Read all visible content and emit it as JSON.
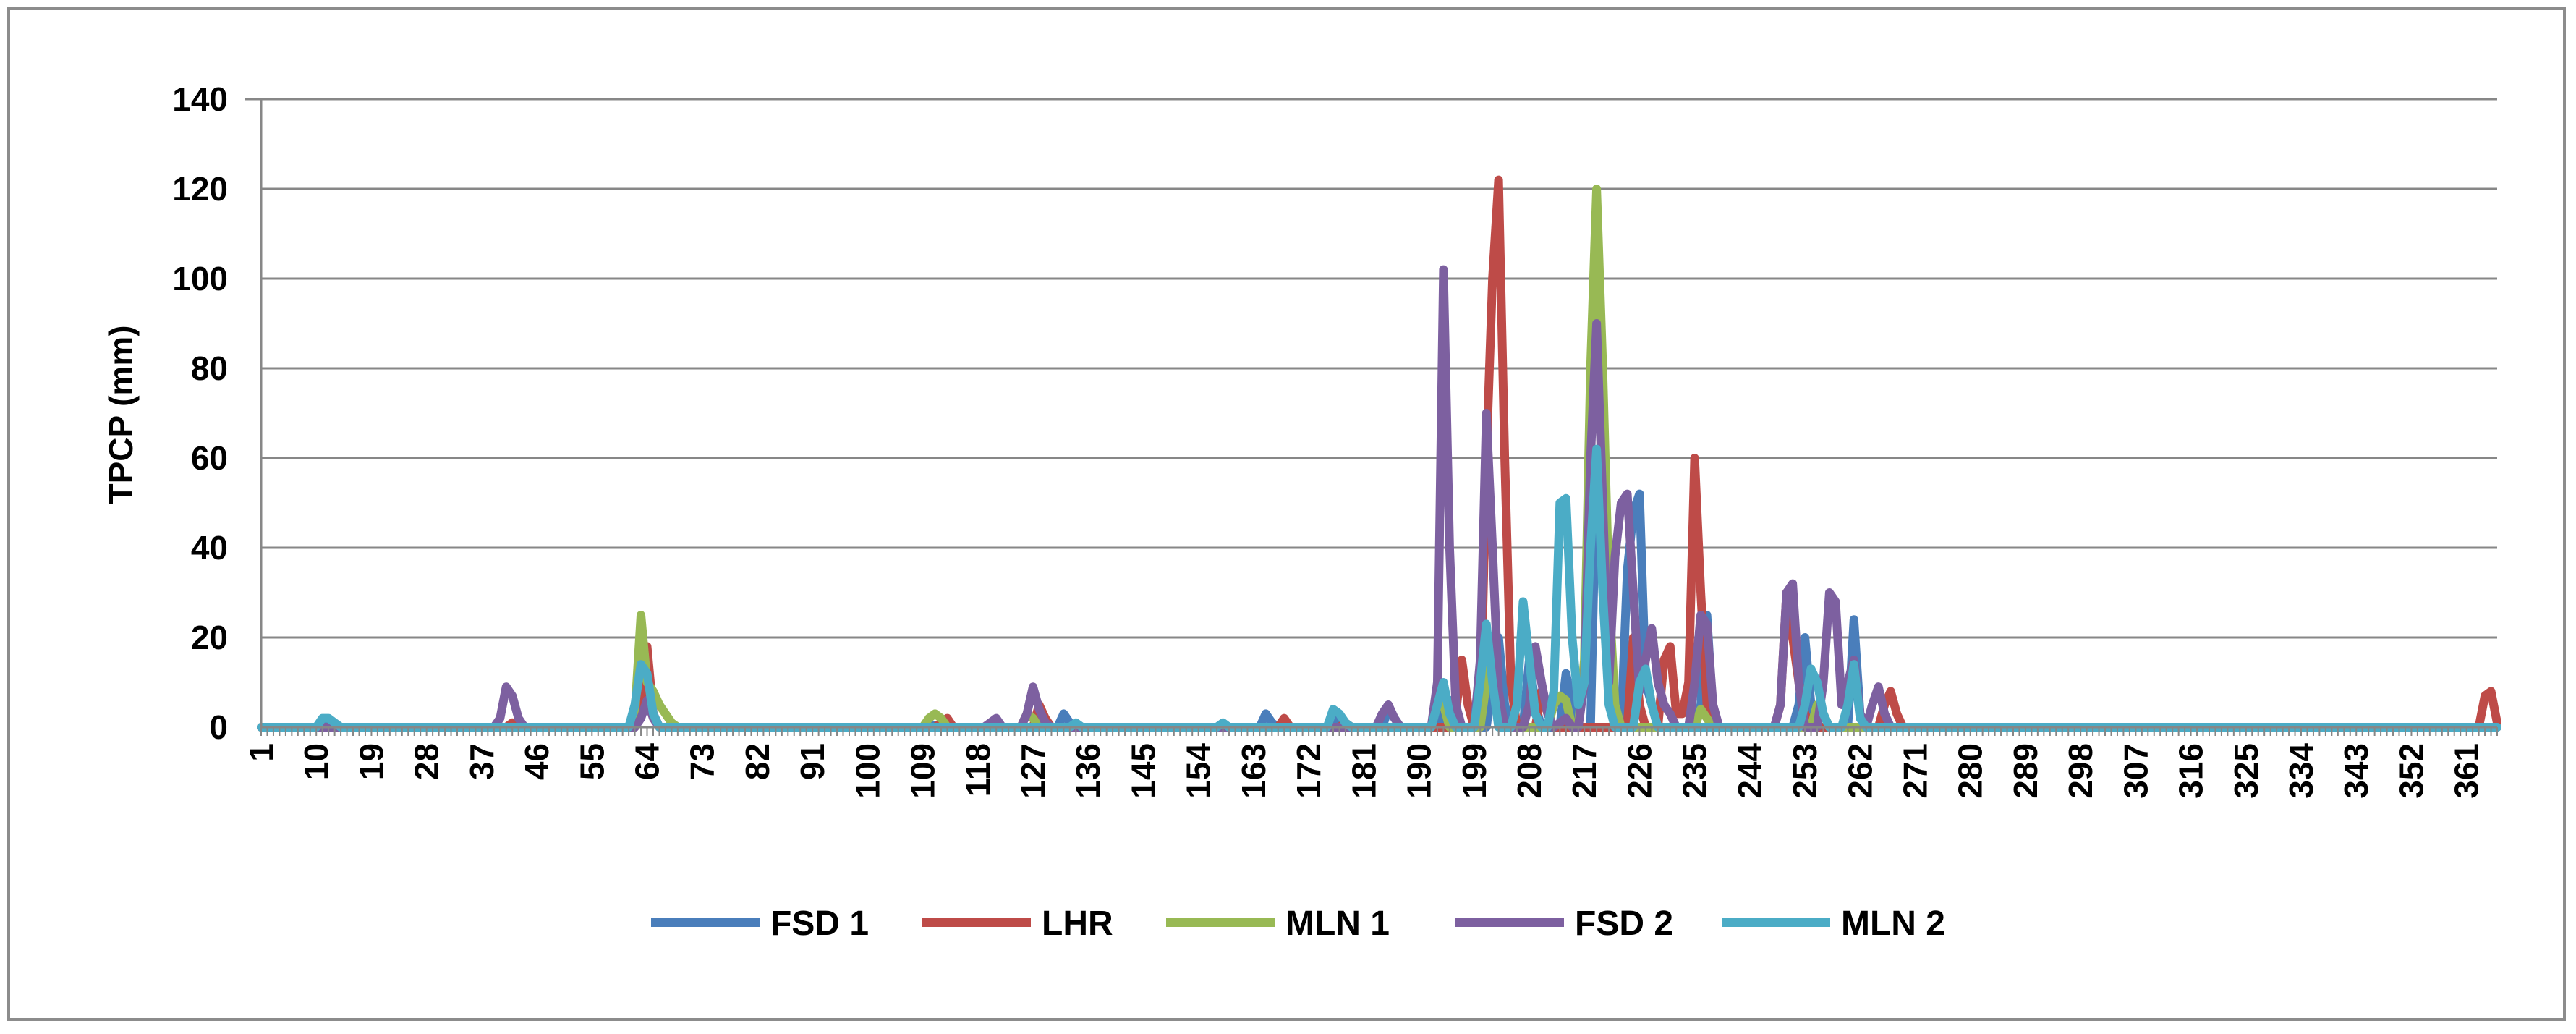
{
  "chart_data": {
    "type": "line",
    "title": "",
    "xlabel": "",
    "ylabel": "TPCP (mm)",
    "xlim": [
      1,
      366
    ],
    "ylim": [
      0,
      140
    ],
    "yticks": [
      0,
      20,
      40,
      60,
      80,
      100,
      120,
      140
    ],
    "xticks": [
      1,
      10,
      19,
      28,
      37,
      46,
      55,
      64,
      73,
      82,
      91,
      100,
      109,
      118,
      127,
      136,
      145,
      154,
      163,
      172,
      181,
      190,
      199,
      208,
      217,
      226,
      235,
      244,
      253,
      262,
      271,
      280,
      289,
      298,
      307,
      316,
      325,
      334,
      343,
      352,
      361
    ],
    "grid": "horizontal",
    "legend_position": "bottom",
    "series": [
      {
        "name": "FSD 1",
        "color": "#4a7ebb",
        "points": [
          [
            11,
            1
          ],
          [
            12,
            1
          ],
          [
            63,
            3
          ],
          [
            64,
            10
          ],
          [
            65,
            3
          ],
          [
            110,
            1
          ],
          [
            128,
            1
          ],
          [
            132,
            3
          ],
          [
            133,
            1
          ],
          [
            165,
            3
          ],
          [
            166,
            1
          ],
          [
            176,
            2
          ],
          [
            185,
            4
          ],
          [
            186,
            2
          ],
          [
            194,
            3
          ],
          [
            195,
            6
          ],
          [
            202,
            10
          ],
          [
            203,
            20
          ],
          [
            204,
            5
          ],
          [
            208,
            15
          ],
          [
            209,
            5
          ],
          [
            214,
            12
          ],
          [
            215,
            5
          ],
          [
            219,
            60
          ],
          [
            220,
            62
          ],
          [
            221,
            20
          ],
          [
            224,
            35
          ],
          [
            225,
            48
          ],
          [
            226,
            52
          ],
          [
            227,
            10
          ],
          [
            228,
            5
          ],
          [
            236,
            5
          ],
          [
            237,
            25
          ],
          [
            238,
            3
          ],
          [
            252,
            5
          ],
          [
            253,
            20
          ],
          [
            254,
            5
          ],
          [
            261,
            24
          ],
          [
            262,
            3
          ]
        ]
      },
      {
        "name": "LHR",
        "color": "#be4b48",
        "points": [
          [
            42,
            1
          ],
          [
            63,
            5
          ],
          [
            64,
            18
          ],
          [
            65,
            3
          ],
          [
            112,
            1
          ],
          [
            113,
            2
          ],
          [
            114,
            0
          ],
          [
            128,
            5
          ],
          [
            129,
            2
          ],
          [
            168,
            2
          ],
          [
            178,
            1
          ],
          [
            196,
            3
          ],
          [
            197,
            15
          ],
          [
            198,
            5
          ],
          [
            201,
            60
          ],
          [
            202,
            100
          ],
          [
            203,
            122
          ],
          [
            204,
            60
          ],
          [
            205,
            10
          ],
          [
            210,
            8
          ],
          [
            211,
            3
          ],
          [
            225,
            20
          ],
          [
            226,
            5
          ],
          [
            230,
            15
          ],
          [
            231,
            18
          ],
          [
            232,
            3
          ],
          [
            233,
            3
          ],
          [
            234,
            10
          ],
          [
            235,
            60
          ],
          [
            236,
            30
          ],
          [
            237,
            5
          ],
          [
            249,
            5
          ],
          [
            250,
            30
          ],
          [
            251,
            20
          ],
          [
            252,
            10
          ],
          [
            253,
            3
          ],
          [
            266,
            5
          ],
          [
            267,
            8
          ],
          [
            268,
            3
          ],
          [
            364,
            7
          ],
          [
            365,
            8
          ],
          [
            366,
            1
          ]
        ]
      },
      {
        "name": "MLN 1",
        "color": "#98b954",
        "points": [
          [
            62,
            3
          ],
          [
            63,
            25
          ],
          [
            64,
            10
          ],
          [
            65,
            8
          ],
          [
            66,
            5
          ],
          [
            67,
            3
          ],
          [
            68,
            1
          ],
          [
            110,
            2
          ],
          [
            111,
            3
          ],
          [
            112,
            2
          ],
          [
            126,
            3
          ],
          [
            127,
            2
          ],
          [
            193,
            8
          ],
          [
            194,
            5
          ],
          [
            201,
            10
          ],
          [
            202,
            20
          ],
          [
            203,
            5
          ],
          [
            212,
            5
          ],
          [
            213,
            7
          ],
          [
            214,
            6
          ],
          [
            217,
            15
          ],
          [
            218,
            80
          ],
          [
            219,
            120
          ],
          [
            220,
            80
          ],
          [
            221,
            30
          ],
          [
            222,
            5
          ],
          [
            236,
            4
          ],
          [
            237,
            2
          ],
          [
            255,
            5
          ],
          [
            256,
            3
          ]
        ]
      },
      {
        "name": "FSD 2",
        "color": "#7d60a0",
        "points": [
          [
            40,
            2
          ],
          [
            41,
            9
          ],
          [
            42,
            7
          ],
          [
            43,
            2
          ],
          [
            63,
            2
          ],
          [
            64,
            6
          ],
          [
            65,
            2
          ],
          [
            120,
            1
          ],
          [
            121,
            2
          ],
          [
            126,
            3
          ],
          [
            127,
            9
          ],
          [
            128,
            4
          ],
          [
            129,
            1
          ],
          [
            184,
            3
          ],
          [
            185,
            5
          ],
          [
            186,
            2
          ],
          [
            193,
            10
          ],
          [
            194,
            102
          ],
          [
            195,
            40
          ],
          [
            196,
            5
          ],
          [
            200,
            15
          ],
          [
            201,
            70
          ],
          [
            202,
            40
          ],
          [
            203,
            8
          ],
          [
            208,
            5
          ],
          [
            209,
            18
          ],
          [
            210,
            10
          ],
          [
            211,
            3
          ],
          [
            213,
            1
          ],
          [
            214,
            2
          ],
          [
            217,
            10
          ],
          [
            218,
            60
          ],
          [
            219,
            90
          ],
          [
            220,
            50
          ],
          [
            221,
            10
          ],
          [
            222,
            38
          ],
          [
            223,
            50
          ],
          [
            224,
            52
          ],
          [
            225,
            30
          ],
          [
            226,
            8
          ],
          [
            227,
            15
          ],
          [
            228,
            22
          ],
          [
            229,
            10
          ],
          [
            230,
            5
          ],
          [
            231,
            3
          ],
          [
            235,
            10
          ],
          [
            236,
            25
          ],
          [
            237,
            23
          ],
          [
            238,
            5
          ],
          [
            249,
            5
          ],
          [
            250,
            30
          ],
          [
            251,
            32
          ],
          [
            252,
            10
          ],
          [
            256,
            10
          ],
          [
            257,
            30
          ],
          [
            258,
            28
          ],
          [
            259,
            5
          ],
          [
            260,
            10
          ],
          [
            261,
            15
          ],
          [
            262,
            3
          ],
          [
            264,
            5
          ],
          [
            265,
            9
          ],
          [
            266,
            3
          ]
        ]
      },
      {
        "name": "MLN 2",
        "color": "#4bacc6",
        "points": [
          [
            11,
            2
          ],
          [
            12,
            2
          ],
          [
            13,
            1
          ],
          [
            62,
            5
          ],
          [
            63,
            14
          ],
          [
            64,
            12
          ],
          [
            65,
            3
          ],
          [
            134,
            1
          ],
          [
            158,
            1
          ],
          [
            176,
            4
          ],
          [
            177,
            3
          ],
          [
            178,
            1
          ],
          [
            193,
            5
          ],
          [
            194,
            10
          ],
          [
            195,
            3
          ],
          [
            200,
            10
          ],
          [
            201,
            23
          ],
          [
            202,
            10
          ],
          [
            206,
            5
          ],
          [
            207,
            28
          ],
          [
            208,
            15
          ],
          [
            209,
            3
          ],
          [
            212,
            8
          ],
          [
            213,
            50
          ],
          [
            214,
            51
          ],
          [
            215,
            20
          ],
          [
            216,
            5
          ],
          [
            217,
            10
          ],
          [
            218,
            40
          ],
          [
            219,
            62
          ],
          [
            220,
            30
          ],
          [
            221,
            5
          ],
          [
            226,
            10
          ],
          [
            227,
            13
          ],
          [
            228,
            5
          ],
          [
            253,
            5
          ],
          [
            254,
            13
          ],
          [
            255,
            10
          ],
          [
            256,
            3
          ],
          [
            260,
            5
          ],
          [
            261,
            14
          ],
          [
            262,
            2
          ]
        ]
      }
    ]
  }
}
